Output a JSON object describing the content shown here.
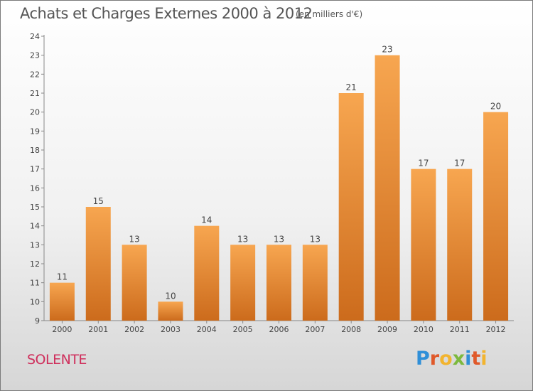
{
  "header": {
    "title": "Achats et Charges Externes 2000 à 2012",
    "unit_note": "(en milliers d'€)"
  },
  "footer": {
    "commune": "SOLENTE",
    "logo_text": "Proxiti",
    "logo_letters": [
      "P",
      "r",
      "o",
      "x",
      "i",
      "t",
      "i"
    ],
    "logo_colors": [
      "#2f8fd8",
      "#e0592a",
      "#f2b42f",
      "#7cb93e",
      "#2f8fd8",
      "#e0592a",
      "#f2b42f"
    ]
  },
  "colors": {
    "bar_light": "#f7a650",
    "bar_dark": "#cc6b1c",
    "commune": "#cf2f5c"
  },
  "chart_data": {
    "type": "bar",
    "title": "Achats et Charges Externes 2000 à 2012",
    "subtitle": "(en milliers d'€)",
    "categories": [
      "2000",
      "2001",
      "2002",
      "2003",
      "2004",
      "2005",
      "2006",
      "2007",
      "2008",
      "2009",
      "2010",
      "2011",
      "2012"
    ],
    "values": [
      11,
      15,
      13,
      10,
      14,
      13,
      13,
      13,
      21,
      23,
      17,
      17,
      20
    ],
    "ylim": [
      9,
      24
    ],
    "yticks": [
      9,
      10,
      11,
      12,
      13,
      14,
      15,
      16,
      17,
      18,
      19,
      20,
      21,
      22,
      23,
      24
    ],
    "xlabel": "",
    "ylabel": "",
    "grid": false,
    "data_labels": true
  }
}
